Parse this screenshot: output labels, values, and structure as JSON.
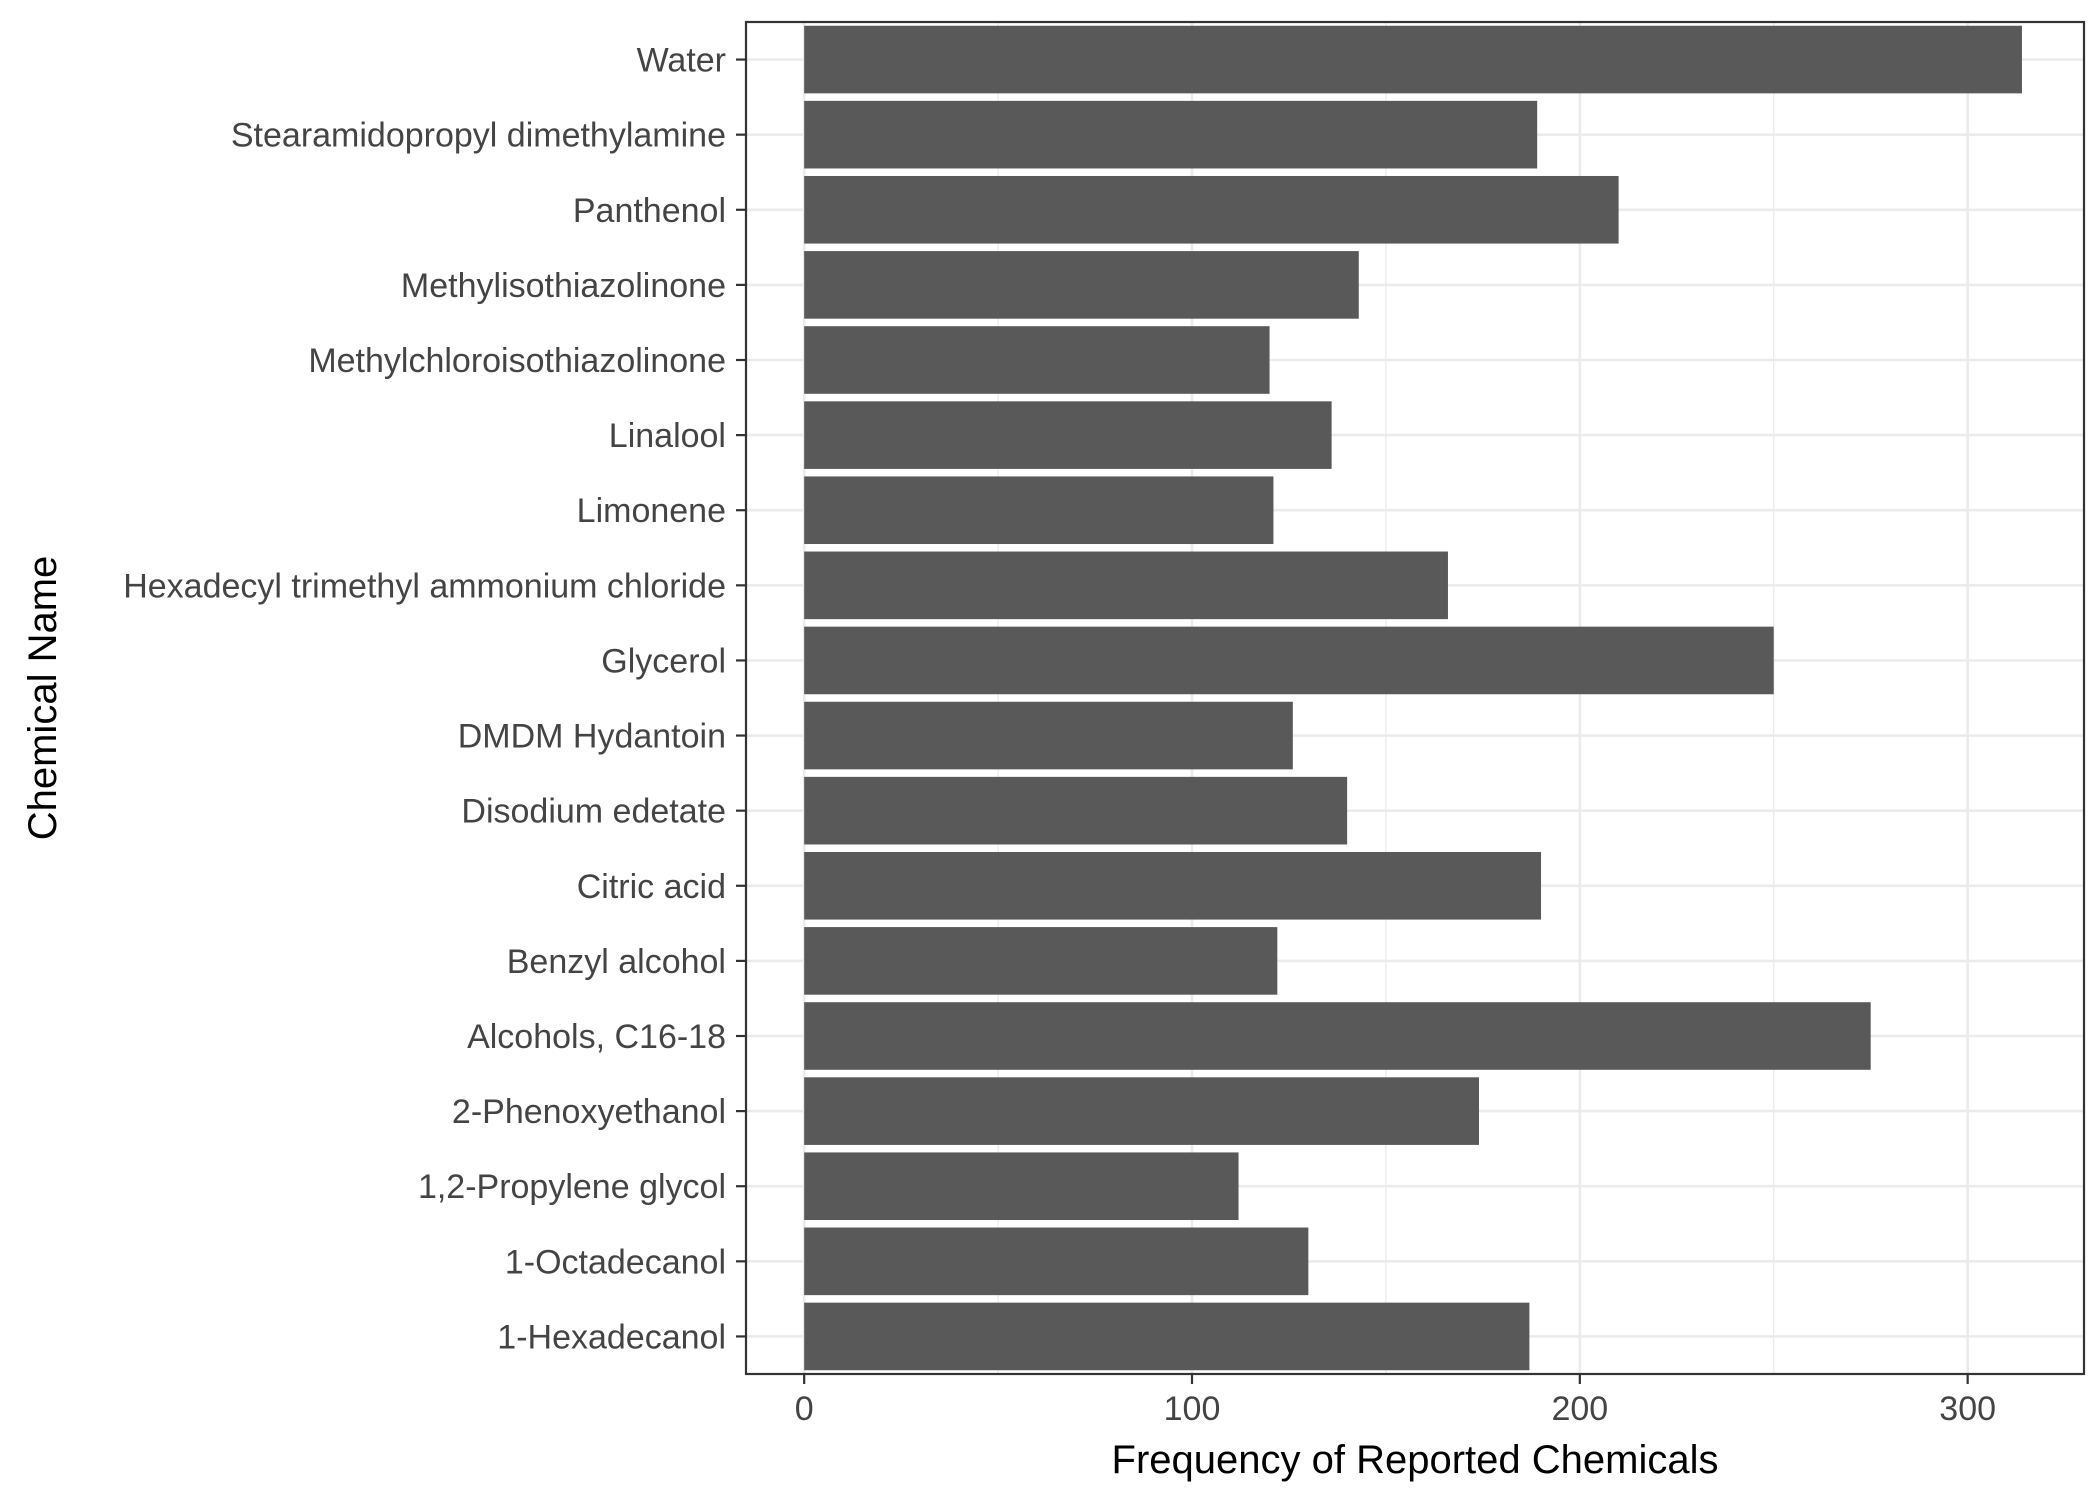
{
  "chart_data": {
    "type": "bar",
    "orientation": "horizontal",
    "title": "",
    "xlabel": "Frequency of Reported Chemicals",
    "ylabel": "Chemical Name",
    "categories": [
      "Water",
      "Stearamidopropyl dimethylamine",
      "Panthenol",
      "Methylisothiazolinone",
      "Methylchloroisothiazolinone",
      "Linalool",
      "Limonene",
      "Hexadecyl trimethyl ammonium chloride",
      "Glycerol",
      "DMDM Hydantoin",
      "Disodium edetate",
      "Citric acid",
      "Benzyl alcohol",
      "Alcohols, C16-18",
      "2-Phenoxyethanol",
      "1,2-Propylene glycol",
      "1-Octadecanol",
      "1-Hexadecanol"
    ],
    "values": [
      314,
      189,
      210,
      143,
      120,
      136,
      121,
      166,
      250,
      126,
      140,
      190,
      122,
      275,
      174,
      112,
      130,
      187
    ],
    "xlim": [
      -15,
      330
    ],
    "xticks": [
      0,
      100,
      200,
      300
    ],
    "grid": true,
    "bar_color": "#595959"
  }
}
